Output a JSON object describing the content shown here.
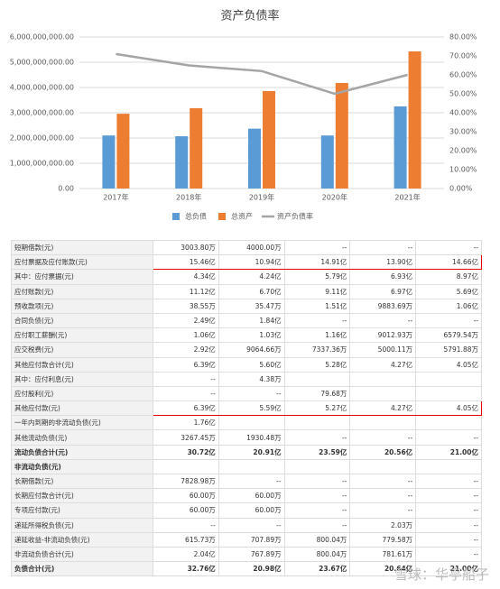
{
  "chart_data": {
    "type": "bar",
    "title": "资产负债率",
    "categories": [
      "2017年",
      "2018年",
      "2019年",
      "2020年",
      "2021年"
    ],
    "series": [
      {
        "name": "总负债",
        "color": "#5b9bd5",
        "values": [
          2100000000,
          2070000000,
          2370000000,
          2100000000,
          3250000000
        ]
      },
      {
        "name": "总资产",
        "color": "#ed7d31",
        "values": [
          2960000000,
          3180000000,
          3860000000,
          4180000000,
          5430000000
        ]
      },
      {
        "name": "资产负债率",
        "color": "#a5a5a5",
        "type": "line",
        "axis": "y2",
        "values": [
          71,
          65,
          62,
          50,
          60
        ]
      }
    ],
    "ylim": [
      0,
      6000000000
    ],
    "yticks": [
      {
        "value": 0,
        "label": "0.00"
      },
      {
        "value": 1000000000,
        "label": "1,000,000,000.00"
      },
      {
        "value": 2000000000,
        "label": "2,000,000,000.00"
      },
      {
        "value": 3000000000,
        "label": "3,000,000,000.00"
      },
      {
        "value": 4000000000,
        "label": "4,000,000,000.00"
      },
      {
        "value": 5000000000,
        "label": "5,000,000,000.00"
      },
      {
        "value": 6000000000,
        "label": "6,000,000,000.00"
      }
    ],
    "y2lim": [
      0,
      80
    ],
    "y2ticks": [
      {
        "value": 0,
        "label": "0.00%"
      },
      {
        "value": 10,
        "label": "10.00%"
      },
      {
        "value": 20,
        "label": "20.00%"
      },
      {
        "value": 30,
        "label": "30.00%"
      },
      {
        "value": 40,
        "label": "40.00%"
      },
      {
        "value": 50,
        "label": "50.00%"
      },
      {
        "value": 60,
        "label": "60.00%"
      },
      {
        "value": 70,
        "label": "70.00%"
      },
      {
        "value": 80,
        "label": "80.00%"
      }
    ],
    "grid": true,
    "legend": "bottom"
  },
  "table": {
    "rows": [
      {
        "label": "短期借款(元)",
        "cells": [
          "3003.80万",
          "4000.00万",
          "--",
          "--",
          "--"
        ]
      },
      {
        "label": "应付票据及应付账款(元)",
        "cells": [
          "15.46亿",
          "10.94亿",
          "14.91亿",
          "13.90亿",
          "14.66亿"
        ],
        "highlight": true
      },
      {
        "label": "其中：应付票据(元)",
        "cells": [
          "4.34亿",
          "4.24亿",
          "5.79亿",
          "6.93亿",
          "8.97亿"
        ]
      },
      {
        "label": "应付账款(元)",
        "cells": [
          "11.12亿",
          "6.70亿",
          "9.11亿",
          "6.97亿",
          "5.69亿"
        ]
      },
      {
        "label": "预收款项(元)",
        "cells": [
          "38.55万",
          "35.47万",
          "1.51亿",
          "9883.69万",
          "1.06亿"
        ]
      },
      {
        "label": "合同负债(元)",
        "cells": [
          "2.49亿",
          "1.84亿",
          "--",
          "--",
          "--"
        ]
      },
      {
        "label": "应付职工薪酬(元)",
        "cells": [
          "1.06亿",
          "1.03亿",
          "1.16亿",
          "9012.93万",
          "6579.54万"
        ]
      },
      {
        "label": "应交税费(元)",
        "cells": [
          "2.92亿",
          "9064.66万",
          "7337.36万",
          "5000.11万",
          "5791.88万"
        ]
      },
      {
        "label": "其他应付款合计(元)",
        "cells": [
          "6.39亿",
          "5.60亿",
          "5.28亿",
          "4.27亿",
          "4.05亿"
        ]
      },
      {
        "label": "其中：应付利息(元)",
        "cells": [
          "--",
          "4.38万",
          null,
          null,
          null
        ]
      },
      {
        "label": "应付股利(元)",
        "cells": [
          "--",
          "--",
          "79.68万",
          null,
          null
        ]
      },
      {
        "label": "其他应付款(元)",
        "cells": [
          "6.39亿",
          "5.59亿",
          "5.27亿",
          "4.27亿",
          "4.05亿"
        ],
        "highlight": true
      },
      {
        "label": "一年内到期的非流动负债(元)",
        "cells": [
          "1.76亿",
          null,
          null,
          null,
          null
        ]
      },
      {
        "label": "其他流动负债(元)",
        "cells": [
          "3267.45万",
          "1930.48万",
          "--",
          "--",
          "--"
        ]
      },
      {
        "label": "流动负债合计(元)",
        "cells": [
          "30.72亿",
          "20.91亿",
          "23.59亿",
          "20.56亿",
          "21.00亿"
        ],
        "bold": true
      },
      {
        "label": "非流动负债(元)",
        "cells": [
          null,
          null,
          null,
          null,
          null
        ],
        "bold": true
      },
      {
        "label": "长期借款(元)",
        "cells": [
          "7828.98万",
          "--",
          "--",
          "--",
          "--"
        ]
      },
      {
        "label": "长期应付款合计(元)",
        "cells": [
          "60.00万",
          "60.00万",
          "--",
          "--",
          "--"
        ]
      },
      {
        "label": "专项应付款(元)",
        "cells": [
          "60.00万",
          "60.00万",
          "--",
          "--",
          "--"
        ]
      },
      {
        "label": "递延所得税负债(元)",
        "cells": [
          "--",
          "--",
          "--",
          "2.03万",
          "--"
        ]
      },
      {
        "label": "递延收益-非流动负债(元)",
        "cells": [
          "615.73万",
          "707.89万",
          "800.04万",
          "779.58万",
          "--"
        ]
      },
      {
        "label": "非流动负债合计(元)",
        "cells": [
          "2.04亿",
          "767.89万",
          "800.04万",
          "781.61万",
          "--"
        ]
      },
      {
        "label": "负债合计(元)",
        "cells": [
          "32.76亿",
          "20.98亿",
          "23.67亿",
          "20.64亿",
          "21.00亿"
        ],
        "bold": true
      }
    ]
  },
  "watermark": "雪球：华亭船子"
}
